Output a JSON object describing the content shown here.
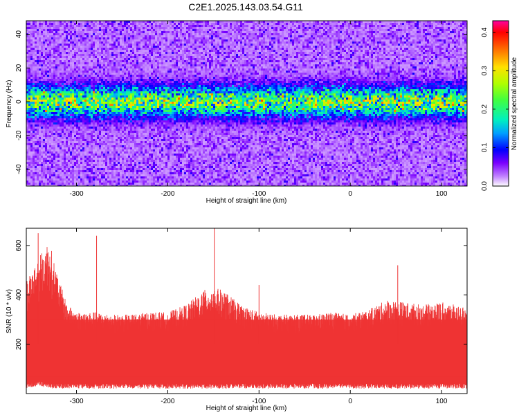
{
  "title": "C2E1.2025.143.03.54.G11",
  "chart_data": [
    {
      "type": "heatmap",
      "xlabel": "Height of straight line (km)",
      "ylabel": "Frequency (Hz)",
      "xlim": [
        -355,
        128
      ],
      "ylim": [
        -50,
        48
      ],
      "x_ticks": [
        -300,
        -200,
        -100,
        0,
        100
      ],
      "y_ticks": [
        40,
        20,
        0,
        -20,
        -40
      ],
      "colorbar": {
        "label": "Normalized spectral amplitude",
        "range": [
          0.0,
          0.43
        ],
        "ticks": [
          "0.0",
          "0.1",
          "0.2",
          "0.3",
          "0.4"
        ],
        "tick_values": [
          0.0,
          0.1,
          0.2,
          0.3,
          0.4
        ]
      },
      "description_values": {
        "band_center_hz": 0,
        "band_halfwidth_hz": 10,
        "peak_amplitude": 0.35
      },
      "grid": false,
      "legend": "colorbar-right"
    },
    {
      "type": "area",
      "xlabel": "Height of straight line (km)",
      "ylabel": "SNR (10 * v/v)",
      "xlim": [
        -355,
        128
      ],
      "ylim": [
        0,
        670
      ],
      "x_ticks": [
        -300,
        -200,
        -100,
        0,
        100
      ],
      "y_ticks": [
        600,
        400,
        200
      ],
      "color": "#ee3333",
      "envelope_x": [
        -355,
        -340,
        -330,
        -320,
        -310,
        -300,
        -280,
        -260,
        -240,
        -220,
        -200,
        -180,
        -160,
        -150,
        -140,
        -120,
        -100,
        -80,
        -60,
        -40,
        -20,
        0,
        20,
        40,
        60,
        80,
        100,
        128
      ],
      "envelope_upper": [
        460,
        560,
        620,
        470,
        360,
        330,
        330,
        320,
        320,
        330,
        330,
        360,
        420,
        430,
        420,
        360,
        330,
        320,
        320,
        320,
        330,
        320,
        340,
        380,
        370,
        360,
        370,
        350
      ],
      "envelope_lower": [
        40,
        50,
        40,
        40,
        40,
        40,
        40,
        40,
        40,
        40,
        40,
        40,
        40,
        40,
        40,
        40,
        40,
        40,
        40,
        40,
        40,
        40,
        40,
        40,
        40,
        40,
        40,
        40
      ],
      "peaks": [
        {
          "x": -342,
          "y": 650
        },
        {
          "x": -278,
          "y": 640
        },
        {
          "x": -149,
          "y": 670
        },
        {
          "x": -100,
          "y": 440
        },
        {
          "x": 52,
          "y": 520
        }
      ],
      "grid": false,
      "legend": "none"
    }
  ]
}
